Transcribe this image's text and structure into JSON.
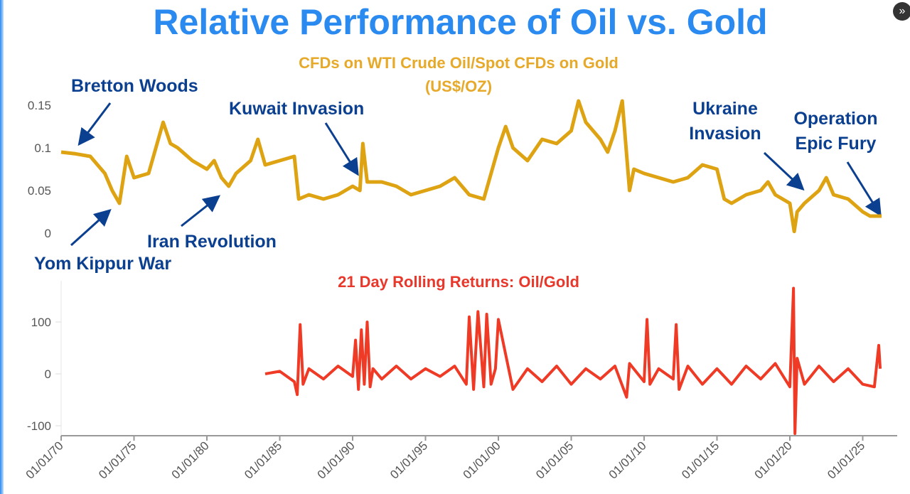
{
  "title": "Relative Performance of Oil vs. Gold",
  "forward_button": "»",
  "chart_data": [
    {
      "type": "line",
      "title": "CFDs on WTI Crude Oil/Spot CFDs on Gold (US$/OZ)",
      "color": "#dea312",
      "ylim": [
        0,
        0.16
      ],
      "xlim": [
        1970,
        2026.5
      ],
      "yticks": [
        {
          "v": 0,
          "label": "0"
        },
        {
          "v": 0.05,
          "label": "0.05"
        },
        {
          "v": 0.1,
          "label": "0.1"
        },
        {
          "v": 0.15,
          "label": "0.15"
        }
      ],
      "grid": false,
      "x": [
        1970,
        1971,
        1972,
        1973,
        1973.5,
        1974,
        1974.5,
        1975,
        1976,
        1976.5,
        1977,
        1977.5,
        1978,
        1979,
        1980,
        1980.5,
        1981,
        1981.5,
        1982,
        1983,
        1983.5,
        1984,
        1985,
        1986,
        1986.3,
        1987,
        1988,
        1989,
        1990,
        1990.5,
        1990.7,
        1991,
        1992,
        1993,
        1994,
        1995,
        1996,
        1997,
        1998,
        1999,
        1999.5,
        2000,
        2000.5,
        2001,
        2002,
        2003,
        2004,
        2005,
        2005.5,
        2006,
        2007,
        2007.5,
        2008,
        2008.5,
        2009,
        2009.3,
        2010,
        2011,
        2012,
        2013,
        2014,
        2015,
        2015.5,
        2016,
        2017,
        2018,
        2018.5,
        2019,
        2019.5,
        2020,
        2020.3,
        2020.5,
        2021,
        2022,
        2022.5,
        2023,
        2024,
        2025,
        2025.5,
        2026.3
      ],
      "y": [
        0.095,
        0.093,
        0.09,
        0.07,
        0.05,
        0.035,
        0.09,
        0.065,
        0.07,
        0.1,
        0.13,
        0.105,
        0.1,
        0.085,
        0.075,
        0.085,
        0.065,
        0.055,
        0.07,
        0.085,
        0.11,
        0.08,
        0.085,
        0.09,
        0.04,
        0.045,
        0.04,
        0.045,
        0.055,
        0.05,
        0.105,
        0.06,
        0.06,
        0.055,
        0.045,
        0.05,
        0.055,
        0.065,
        0.045,
        0.04,
        0.07,
        0.1,
        0.125,
        0.1,
        0.085,
        0.11,
        0.105,
        0.12,
        0.155,
        0.13,
        0.11,
        0.095,
        0.12,
        0.155,
        0.05,
        0.075,
        0.07,
        0.065,
        0.06,
        0.065,
        0.08,
        0.075,
        0.04,
        0.035,
        0.045,
        0.05,
        0.06,
        0.045,
        0.04,
        0.035,
        0.002,
        0.025,
        0.035,
        0.05,
        0.065,
        0.045,
        0.04,
        0.025,
        0.02,
        0.02
      ],
      "annotations": [
        "Bretton Woods",
        "Yom Kippur War",
        "Iran Revolution",
        "Kuwait Invasion",
        "Ukraine Invasion",
        "Operation Epic Fury"
      ]
    },
    {
      "type": "line",
      "title": "21 Day Rolling Returns: Oil/Gold",
      "color": "#ef3a26",
      "ylim": [
        -120,
        170
      ],
      "yticks": [
        {
          "v": -100,
          "label": "-100"
        },
        {
          "v": 0,
          "label": "0"
        },
        {
          "v": 100,
          "label": "100"
        }
      ],
      "xticks": [
        "01/01/70",
        "01/01/75",
        "01/01/80",
        "01/01/85",
        "01/01/90",
        "01/01/95",
        "01/01/00",
        "01/01/05",
        "01/01/10",
        "01/01/15",
        "01/01/20",
        "01/01/25"
      ],
      "grid": false,
      "x": [
        1984,
        1985,
        1986,
        1986.2,
        1986.4,
        1986.6,
        1987,
        1988,
        1989,
        1990,
        1990.2,
        1990.4,
        1990.6,
        1990.8,
        1991,
        1991.2,
        1991.4,
        1992,
        1993,
        1994,
        1995,
        1996,
        1997,
        1997.8,
        1998,
        1998.3,
        1998.6,
        1999,
        1999.2,
        1999.5,
        1999.8,
        2000,
        2001,
        2002,
        2003,
        2004,
        2005,
        2006,
        2007,
        2008,
        2008.8,
        2009,
        2010,
        2010.2,
        2010.4,
        2011,
        2012,
        2012.2,
        2012.4,
        2013,
        2014,
        2015,
        2016,
        2017,
        2018,
        2019,
        2020,
        2020.25,
        2020.35,
        2020.5,
        2021,
        2022,
        2023,
        2024,
        2025,
        2025.8,
        2026.1,
        2026.2
      ],
      "y": [
        0,
        5,
        -15,
        -40,
        95,
        -20,
        10,
        -10,
        15,
        -5,
        65,
        -30,
        85,
        -20,
        100,
        -25,
        10,
        -10,
        15,
        -10,
        10,
        -5,
        15,
        -20,
        110,
        -30,
        120,
        -25,
        115,
        -20,
        10,
        105,
        -30,
        10,
        -15,
        15,
        -20,
        10,
        -10,
        15,
        -45,
        20,
        -15,
        105,
        -20,
        10,
        -10,
        95,
        -30,
        15,
        -20,
        10,
        -20,
        15,
        -10,
        20,
        -25,
        165,
        -115,
        30,
        -20,
        15,
        -15,
        10,
        -20,
        -25,
        55,
        10
      ]
    }
  ]
}
